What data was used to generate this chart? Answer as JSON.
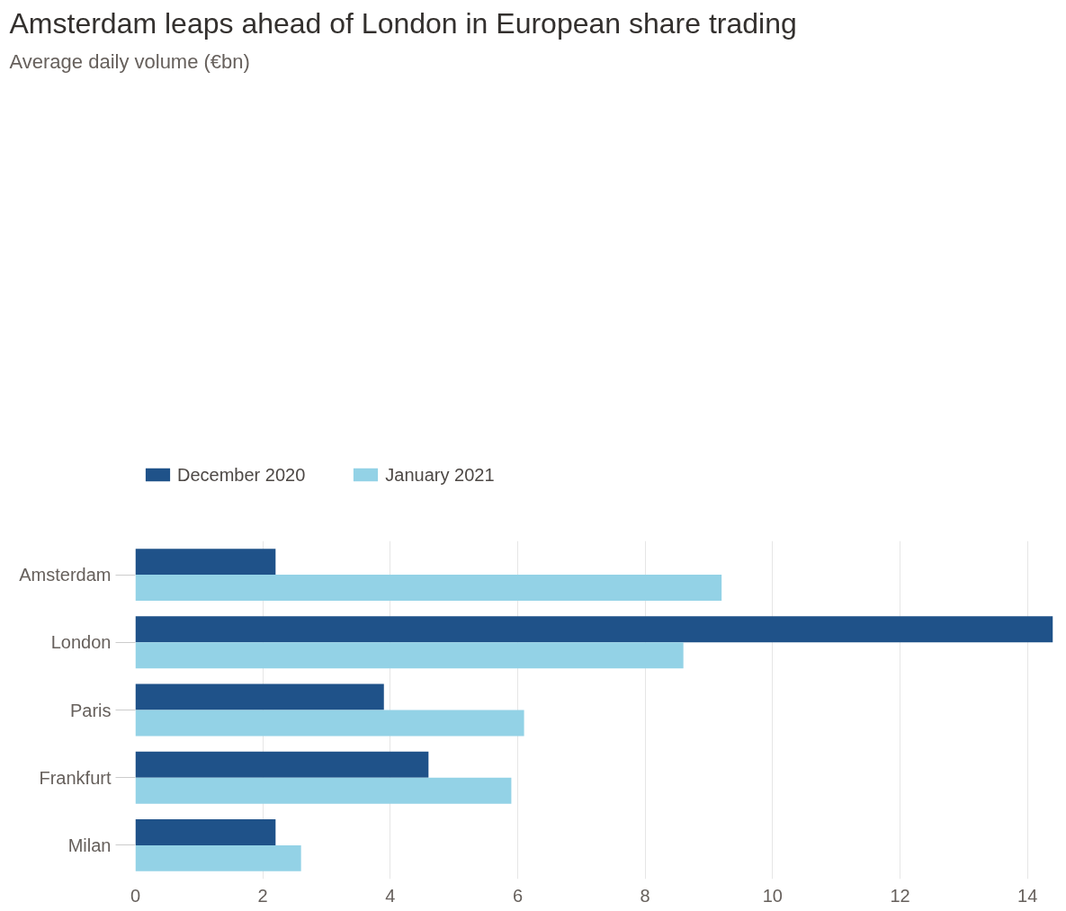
{
  "chart_data": {
    "type": "bar",
    "orientation": "horizontal",
    "title": "Amsterdam leaps ahead of London in European share trading",
    "subtitle": "Average daily volume (€bn)",
    "categories": [
      "Amsterdam",
      "London",
      "Paris",
      "Frankfurt",
      "Milan"
    ],
    "series": [
      {
        "name": "December 2020",
        "color": "#1f5289",
        "values": [
          2.2,
          14.4,
          3.9,
          4.6,
          2.2
        ]
      },
      {
        "name": "January 2021",
        "color": "#93d2e6",
        "values": [
          9.2,
          8.6,
          6.1,
          5.9,
          2.6
        ]
      }
    ],
    "xlim": [
      0,
      14.4
    ],
    "xticks": [
      0,
      2,
      4,
      6,
      8,
      10,
      12,
      14
    ],
    "grid": "x",
    "legend": "top left"
  }
}
